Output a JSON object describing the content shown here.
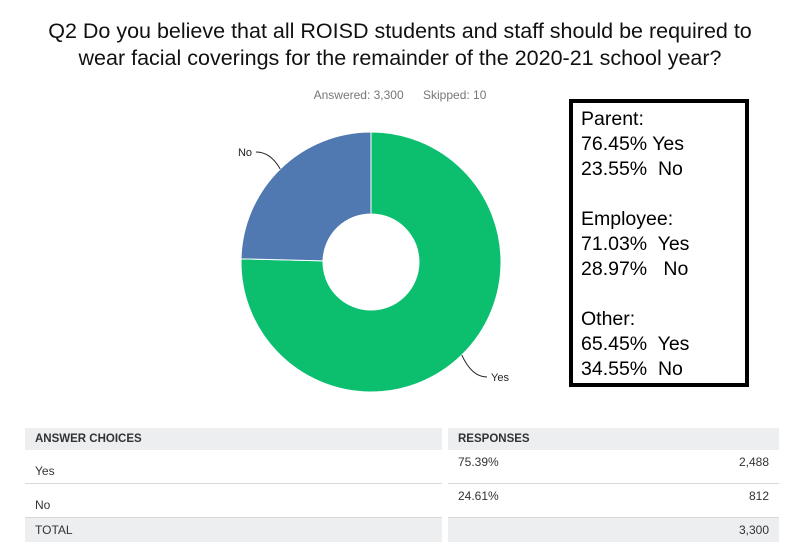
{
  "question": {
    "line1": "Q2 Do you believe that all ROISD students and staff should be required to",
    "line2": "wear facial coverings for the remainder of the 2020-21 school year?"
  },
  "meta": {
    "answered": "Answered: 3,300",
    "skipped": "Skipped: 10"
  },
  "chart_data": {
    "type": "pie",
    "title": "Q2 Do you believe that all ROISD students and staff should be required to wear facial coverings for the remainder of the 2020-21 school year?",
    "categories": [
      "Yes",
      "No"
    ],
    "values": [
      75.39,
      24.61
    ],
    "colors": [
      "#0bbf6f",
      "#4f79b0"
    ],
    "labels": [
      "Yes",
      "No"
    ]
  },
  "notes": {
    "parent": {
      "title": "Parent:",
      "yes": "76.45% Yes",
      "no": "23.55%  No"
    },
    "employee": {
      "title": "Employee:",
      "yes": "71.03%  Yes",
      "no": "28.97%   No"
    },
    "other": {
      "title": "Other:",
      "yes": "65.45%  Yes",
      "no": "34.55%  No"
    }
  },
  "table": {
    "headers": {
      "choices": "ANSWER CHOICES",
      "responses": "RESPONSES"
    },
    "rows": [
      {
        "choice": "Yes",
        "pct": "75.39%",
        "count": "2,488"
      },
      {
        "choice": "No",
        "pct": "24.61%",
        "count": "812"
      }
    ],
    "total": {
      "label": "TOTAL",
      "count": "3,300"
    }
  }
}
